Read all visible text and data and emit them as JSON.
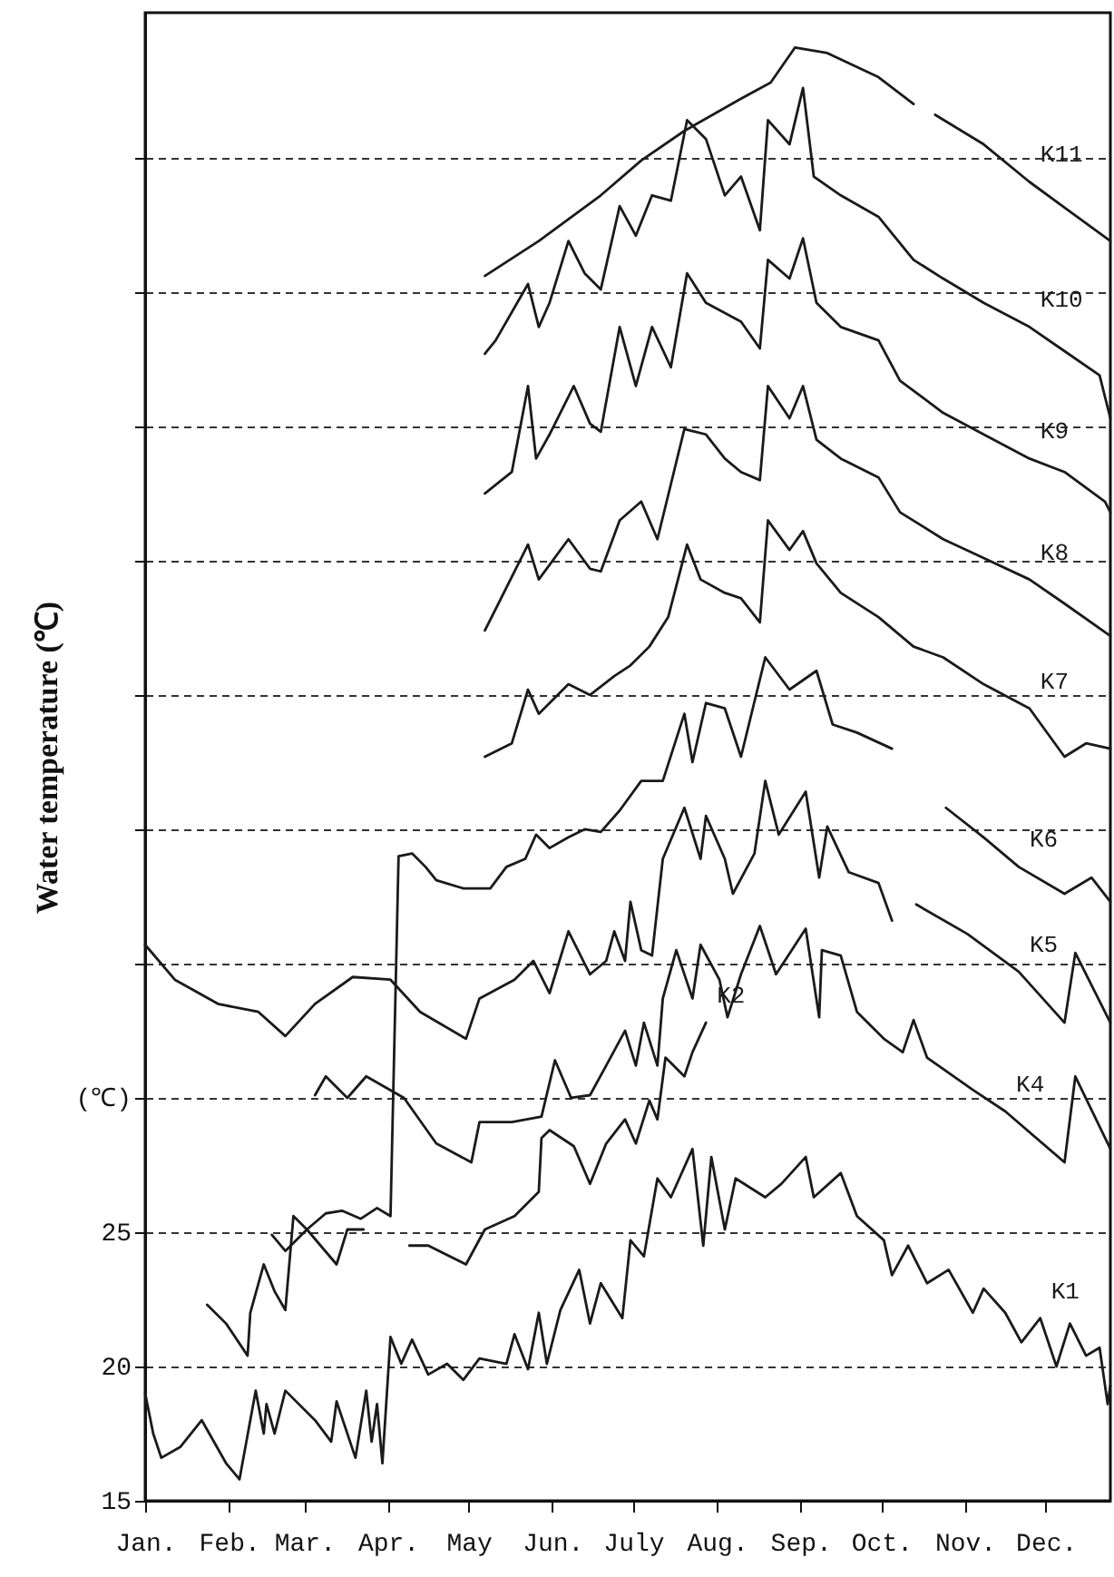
{
  "chart_data": {
    "type": "line",
    "ylabel": "Water temperature (℃)",
    "xlim": [
      "--01-01",
      "--12-25"
    ],
    "xticks": [
      {
        "value": "--01-01",
        "label": "Jan."
      },
      {
        "value": "--02-01",
        "label": "Feb."
      },
      {
        "value": "--03-01",
        "label": "Mar."
      },
      {
        "value": "--04-01",
        "label": "Apr."
      },
      {
        "value": "--05-01",
        "label": "May"
      },
      {
        "value": "--06-01",
        "label": "Jun."
      },
      {
        "value": "--07-01",
        "label": "July"
      },
      {
        "value": "--08-01",
        "label": "Aug."
      },
      {
        "value": "--09-01",
        "label": "Sep."
      },
      {
        "value": "--10-01",
        "label": "Oct."
      },
      {
        "value": "--11-01",
        "label": "Nov."
      },
      {
        "value": "--12-01",
        "label": "Dec."
      }
    ],
    "ylim": [
      15,
      70.4
    ],
    "yticks": [
      15,
      20,
      25,
      {
        "value": 30,
        "label": "(℃)"
      },
      {
        "value": 35,
        "label": null
      },
      {
        "value": 40,
        "label": null
      },
      {
        "value": 45,
        "label": null
      },
      {
        "value": 50,
        "label": null
      },
      {
        "value": 55,
        "label": null
      },
      {
        "value": 60,
        "label": null
      },
      {
        "value": 65,
        "label": null
      }
    ],
    "grid": "y",
    "line_style": "solid",
    "series": [
      {
        "name": "K1",
        "color": "#1a1a1a",
        "x": [
          "--01-01",
          "--01-04",
          "--01-07",
          "--01-14",
          "--01-22",
          "--01-31",
          "--02-05",
          "--02-11",
          "--02-14",
          "--02-15",
          "--02-18",
          "--02-22",
          "--03-05",
          "--03-11",
          "--03-13",
          "--03-20",
          "--03-24",
          "--03-26",
          "--03-28",
          "--03-30",
          "--04-02",
          "--04-06",
          "--04-10",
          "--04-16",
          "--04-23",
          "--04-29",
          "--05-05",
          "--05-15",
          "--05-18",
          "--05-23",
          "--05-27",
          "--05-30",
          "--06-04",
          "--06-11",
          "--06-15",
          "--06-19",
          "--06-27",
          "--06-30",
          "--07-05",
          "--07-10",
          "--07-15",
          "--07-23",
          "--07-27",
          "--07-30",
          "--08-04",
          "--08-08",
          "--08-19",
          "--08-25",
          "--09-03",
          "--09-06",
          "--09-16",
          "--09-22",
          "--10-02",
          "--10-05",
          "--10-11",
          "--10-18",
          "--10-26",
          "--11-04",
          "--11-08",
          "--11-16",
          "--11-22",
          "--11-29",
          "--12-05",
          "--12-10",
          "--12-16",
          "--12-21",
          "--12-24",
          "--12-25"
        ],
        "values": [
          19.0,
          17.5,
          16.6,
          17.0,
          18.0,
          16.4,
          15.8,
          19.1,
          17.5,
          18.6,
          17.5,
          19.1,
          18.0,
          17.2,
          18.7,
          16.6,
          19.1,
          17.2,
          18.6,
          16.4,
          21.1,
          20.1,
          21.0,
          19.7,
          20.1,
          19.5,
          20.3,
          20.1,
          21.2,
          19.9,
          22.0,
          20.1,
          22.1,
          23.6,
          21.6,
          23.1,
          21.8,
          24.7,
          24.1,
          27.0,
          26.3,
          28.1,
          24.5,
          27.8,
          25.1,
          27.0,
          26.3,
          26.8,
          27.8,
          26.3,
          27.2,
          25.6,
          24.7,
          23.4,
          24.5,
          23.1,
          23.6,
          22.0,
          22.9,
          22.0,
          20.9,
          21.8,
          20.0,
          21.6,
          20.4,
          20.7,
          18.6,
          19.3
        ]
      },
      {
        "name": "K2",
        "color": "#1a1a1a",
        "x": [
          "--02-17",
          "--02-22",
          "--03-02",
          "--03-13",
          "--03-17",
          "--03-23",
          "--04-01",
          "--04-09",
          "--04-16",
          "--04-30",
          "--05-07",
          "--05-18",
          "--05-27",
          "--05-28",
          "--05-31",
          "--06-09",
          "--06-15",
          "--06-21",
          "--06-28",
          "--07-02",
          "--07-07",
          "--07-10",
          "--07-13",
          "--07-20",
          "--07-23",
          "--07-28"
        ],
        "values": [
          24.9,
          24.3,
          25.1,
          23.8,
          25.1,
          25.1,
          null,
          24.5,
          24.5,
          23.8,
          25.1,
          25.6,
          26.5,
          28.5,
          28.8,
          28.2,
          26.8,
          28.3,
          29.2,
          28.3,
          29.9,
          29.2,
          31.5,
          30.8,
          31.7,
          32.8
        ]
      },
      {
        "name": "K4",
        "color": "#1a1a1a",
        "x": [
          "--03-05",
          "--03-09",
          "--03-17",
          "--03-24",
          "--04-07",
          "--04-19",
          "--05-02",
          "--05-05",
          "--05-17",
          "--05-28",
          "--06-02",
          "--06-08",
          "--06-15",
          "--06-21",
          "--06-28",
          "--07-02",
          "--07-05",
          "--07-10",
          "--07-12",
          "--07-17",
          "--07-23",
          "--07-26",
          "--08-02",
          "--08-05",
          "--08-10",
          "--08-17",
          "--08-23",
          "--09-03",
          "--09-08",
          "--09-09",
          "--09-16",
          "--09-22",
          "--10-02",
          "--10-09",
          "--10-13",
          "--10-18",
          "--11-04",
          "--11-16",
          "--12-08",
          "--12-12",
          "--12-25"
        ],
        "values": [
          30.1,
          30.8,
          30.0,
          30.8,
          30.0,
          28.3,
          27.6,
          29.1,
          29.1,
          29.3,
          31.4,
          30.0,
          30.1,
          31.2,
          32.5,
          31.2,
          32.8,
          31.2,
          33.7,
          35.5,
          33.7,
          35.7,
          34.4,
          33.0,
          34.6,
          36.4,
          34.6,
          36.3,
          33.0,
          35.5,
          35.3,
          33.2,
          32.2,
          31.7,
          32.9,
          31.5,
          30.3,
          29.5,
          27.6,
          30.8,
          28.1
        ]
      },
      {
        "name": "K5",
        "color": "#1a1a1a",
        "x": [
          "--01-01",
          "--01-12",
          "--01-28",
          "--02-12",
          "--02-22",
          "--03-05",
          "--03-19",
          "--04-02",
          "--04-13",
          "--04-30",
          "--05-05",
          "--05-18",
          "--05-25",
          "--05-31",
          "--06-07",
          "--06-15",
          "--06-21",
          "--06-24",
          "--06-28",
          "--06-30",
          "--07-04",
          "--07-08",
          "--07-12",
          "--07-20",
          "--07-26",
          "--07-28",
          "--08-04",
          "--08-07",
          "--08-15",
          "--08-19",
          "--08-24",
          "--09-03",
          "--09-08",
          "--09-11",
          "--09-19",
          "--09-30",
          "--10-05",
          "--10-08",
          "--10-14",
          "--11-02",
          "--11-21",
          "--12-08",
          "--12-12",
          "--12-25"
        ],
        "values": [
          35.7,
          34.4,
          33.5,
          33.2,
          32.3,
          33.5,
          34.5,
          34.4,
          33.2,
          32.2,
          33.7,
          34.4,
          35.1,
          33.9,
          36.2,
          34.6,
          35.1,
          36.2,
          35.1,
          37.3,
          35.5,
          35.3,
          38.9,
          40.8,
          38.9,
          40.5,
          38.9,
          37.6,
          39.1,
          41.8,
          39.8,
          41.4,
          38.2,
          40.1,
          38.4,
          38.0,
          36.6,
          null,
          37.2,
          36.1,
          34.7,
          32.8,
          35.4,
          32.8
        ]
      },
      {
        "name": "K6",
        "color": "#1a1a1a",
        "x": [
          "--01-24",
          "--01-31",
          "--02-08",
          "--02-09",
          "--02-14",
          "--02-18",
          "--02-22",
          "--02-25",
          "--03-02",
          "--03-09",
          "--03-15",
          "--03-22",
          "--03-28",
          "--04-02",
          "--04-05",
          "--04-10",
          "--04-15",
          "--04-19",
          "--04-29",
          "--05-09",
          "--05-15",
          "--05-22",
          "--05-26",
          "--05-31",
          "--06-07",
          "--06-13",
          "--06-19",
          "--06-26",
          "--07-04",
          "--07-12",
          "--07-20",
          "--07-23",
          "--07-28",
          "--08-04",
          "--08-10",
          "--08-19",
          "--08-28",
          "--09-07",
          "--09-13",
          "--09-22",
          "--10-05",
          "--10-15",
          "--10-25",
          "--11-08",
          "--11-21",
          "--12-08",
          "--12-18",
          "--12-25"
        ],
        "values": [
          22.3,
          21.6,
          20.4,
          22.0,
          23.8,
          22.8,
          22.1,
          25.6,
          25.1,
          25.7,
          25.8,
          25.5,
          25.9,
          25.6,
          39.0,
          39.1,
          38.6,
          38.1,
          37.8,
          37.8,
          38.6,
          38.9,
          39.8,
          39.3,
          39.7,
          40.0,
          39.9,
          40.7,
          41.8,
          41.8,
          44.3,
          42.5,
          44.7,
          44.5,
          42.7,
          46.4,
          45.2,
          45.9,
          43.9,
          43.6,
          43.0,
          null,
          40.8,
          39.7,
          38.6,
          37.6,
          38.2,
          37.3
        ]
      },
      {
        "name": "K7",
        "color": "#1a1a1a",
        "x": [
          "--05-07",
          "--05-17",
          "--05-23",
          "--05-27",
          "--06-07",
          "--06-15",
          "--06-24",
          "--06-30",
          "--07-07",
          "--07-14",
          "--07-21",
          "--07-26",
          "--08-04",
          "--08-10",
          "--08-17",
          "--08-20",
          "--08-28",
          "--09-02",
          "--09-07",
          "--09-16",
          "--09-30",
          "--10-13",
          "--10-24",
          "--11-08",
          "--11-25",
          "--12-08",
          "--12-16",
          "--12-25"
        ],
        "values": [
          42.7,
          43.2,
          45.2,
          44.3,
          45.4,
          45.0,
          45.7,
          46.1,
          46.8,
          47.9,
          50.6,
          49.3,
          48.8,
          48.6,
          47.7,
          51.5,
          50.4,
          51.1,
          49.9,
          48.8,
          47.9,
          46.8,
          46.4,
          45.4,
          44.5,
          42.7,
          43.2,
          43.0
        ]
      },
      {
        "name": "K8",
        "color": "#1a1a1a",
        "x": [
          "--05-07",
          "--05-12",
          "--05-23",
          "--05-27",
          "--06-07",
          "--06-15",
          "--06-19",
          "--06-26",
          "--07-04",
          "--07-10",
          "--07-20",
          "--07-28",
          "--08-04",
          "--08-10",
          "--08-17",
          "--08-20",
          "--08-28",
          "--09-02",
          "--09-07",
          "--09-16",
          "--09-30",
          "--10-08",
          "--10-24",
          "--11-08",
          "--11-25",
          "--12-08",
          "--12-25"
        ],
        "values": [
          47.4,
          48.4,
          50.6,
          49.3,
          50.8,
          49.7,
          49.6,
          51.5,
          52.2,
          50.8,
          54.9,
          54.7,
          53.8,
          53.3,
          53.0,
          56.5,
          55.3,
          56.5,
          54.5,
          53.8,
          53.1,
          51.8,
          50.8,
          50.1,
          49.3,
          48.4,
          47.2
        ]
      },
      {
        "name": "K9",
        "color": "#1a1a1a",
        "x": [
          "--05-07",
          "--05-17",
          "--05-23",
          "--05-26",
          "--05-31",
          "--06-09",
          "--06-15",
          "--06-19",
          "--06-26",
          "--07-02",
          "--07-08",
          "--07-15",
          "--07-21",
          "--07-28",
          "--08-10",
          "--08-17",
          "--08-20",
          "--08-28",
          "--09-02",
          "--09-07",
          "--09-16",
          "--09-30",
          "--10-08",
          "--10-24",
          "--11-08",
          "--11-25",
          "--12-08",
          "--12-23",
          "--12-25"
        ],
        "values": [
          52.5,
          53.3,
          56.5,
          53.8,
          54.7,
          56.5,
          55.1,
          54.8,
          58.7,
          56.5,
          58.7,
          57.2,
          60.7,
          59.6,
          58.9,
          57.9,
          61.2,
          60.5,
          62.0,
          59.6,
          58.7,
          58.2,
          56.7,
          55.5,
          54.7,
          53.8,
          53.3,
          52.2,
          51.8
        ]
      },
      {
        "name": "K10",
        "color": "#1a1a1a",
        "x": [
          "--05-07",
          "--05-11",
          "--05-23",
          "--05-27",
          "--05-31",
          "--06-07",
          "--06-13",
          "--06-19",
          "--06-26",
          "--07-02",
          "--07-08",
          "--07-15",
          "--07-21",
          "--07-28",
          "--08-04",
          "--08-10",
          "--08-17",
          "--08-20",
          "--08-28",
          "--09-02",
          "--09-06",
          "--09-16",
          "--09-30",
          "--10-13",
          "--10-24",
          "--11-08",
          "--11-25",
          "--12-08",
          "--12-21",
          "--12-25"
        ],
        "values": [
          57.7,
          58.2,
          60.3,
          58.7,
          59.6,
          61.9,
          60.7,
          60.1,
          63.2,
          62.1,
          63.6,
          63.4,
          66.4,
          65.7,
          63.6,
          64.3,
          62.3,
          66.4,
          65.5,
          67.6,
          64.3,
          63.6,
          62.8,
          61.2,
          60.5,
          59.6,
          58.7,
          57.8,
          56.9,
          55.3
        ]
      },
      {
        "name": "K11",
        "color": "#1a1a1a",
        "x": [
          "--05-07",
          "--05-27",
          "--06-19",
          "--07-04",
          "--07-20",
          "--08-10",
          "--08-21",
          "--08-30",
          "--09-11",
          "--09-30",
          "--10-13",
          "--10-17",
          "--10-21",
          "--11-08",
          "--11-25",
          "--12-10",
          "--12-25"
        ],
        "values": [
          60.6,
          61.9,
          63.6,
          64.9,
          66.0,
          67.2,
          67.8,
          69.1,
          68.9,
          68.0,
          67.0,
          null,
          66.6,
          65.5,
          64.1,
          63.0,
          61.9
        ]
      }
    ]
  }
}
